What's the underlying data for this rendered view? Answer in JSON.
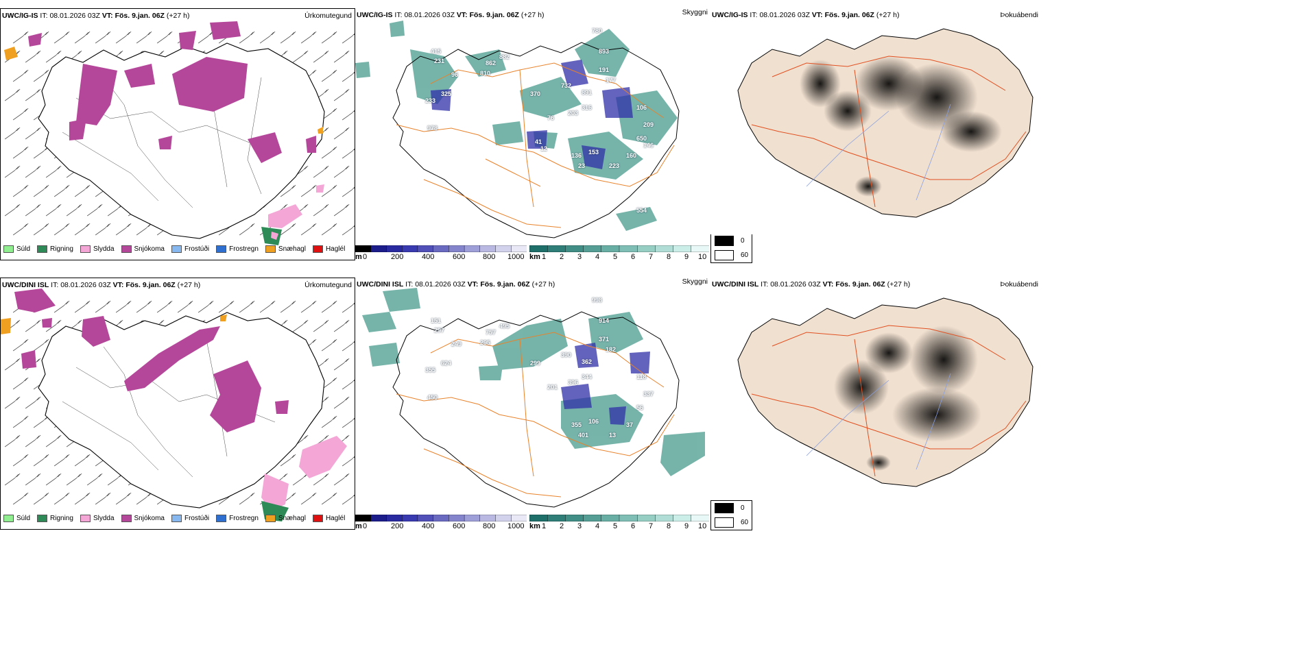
{
  "rows": [
    {
      "model": "UWC/IG-IS",
      "it_label": "IT:",
      "it_value": "08.01.2026 03Z",
      "vt_label": "VT:",
      "vt_value": "Fös. 9.jan. 06Z",
      "lead": "(+27 h)",
      "cloud_labels": [
        "780",
        "893",
        "882",
        "862",
        "810",
        "96",
        "415",
        "231",
        "325",
        "233",
        "978",
        "370",
        "732",
        "891",
        "191",
        "177",
        "316",
        "203",
        "76",
        "106",
        "209",
        "650",
        "136",
        "153",
        "23",
        "223",
        "160",
        "146",
        "554",
        "41",
        "12"
      ]
    },
    {
      "model": "UWC/DINI ISL",
      "it_label": "IT:",
      "it_value": "08.01.2026 03Z",
      "vt_label": "VT:",
      "vt_value": "Fös. 9.jan. 06Z",
      "lead": "(+27 h)",
      "cloud_labels": [
        "998",
        "914",
        "495",
        "757",
        "295",
        "249",
        "151",
        "297",
        "624",
        "355",
        "450",
        "299",
        "390",
        "362",
        "371",
        "182",
        "344",
        "396",
        "201",
        "118",
        "337",
        "56",
        "355",
        "106",
        "401",
        "13",
        "37"
      ]
    }
  ],
  "panel_titles": {
    "precip": "Úrkomutegund",
    "cloud": "Skyggni",
    "fog": "Þokuábendi"
  },
  "precip_legend": [
    {
      "label": "Súld",
      "color": "#90ee90"
    },
    {
      "label": "Rigning",
      "color": "#2e8b57"
    },
    {
      "label": "Slydda",
      "color": "#f4a6d7"
    },
    {
      "label": "Snjókoma",
      "color": "#b5479a"
    },
    {
      "label": "Frostúði",
      "color": "#87b8f0"
    },
    {
      "label": "Frostregn",
      "color": "#2e6fd0"
    },
    {
      "label": "Snæhagl",
      "color": "#f0a020"
    },
    {
      "label": "Haglél",
      "color": "#e01010"
    }
  ],
  "cloudbase_bar": {
    "unit": "m",
    "ticks": [
      "0",
      "200",
      "400",
      "600",
      "800",
      "1000"
    ],
    "colors": [
      "#000000",
      "#1c1c8a",
      "#2a2aa0",
      "#3a3ab0",
      "#5050b8",
      "#6a6ac0",
      "#8484cc",
      "#9e9ed8",
      "#b8b8e2",
      "#d2d2ec",
      "#e8e8f6"
    ]
  },
  "visibility_bar": {
    "unit": "km",
    "ticks": [
      "1",
      "2",
      "3",
      "4",
      "5",
      "6",
      "7",
      "8",
      "9",
      "10"
    ],
    "colors": [
      "#1e6e6a",
      "#2f7e78",
      "#418e86",
      "#549e95",
      "#68aea4",
      "#7ebeb4",
      "#96cec4",
      "#b0ded6",
      "#cceee8",
      "#e8f8f6"
    ]
  },
  "fog_legend": [
    {
      "label": "0",
      "color": "#000000"
    },
    {
      "label": "60",
      "color": "#ffffff"
    }
  ]
}
